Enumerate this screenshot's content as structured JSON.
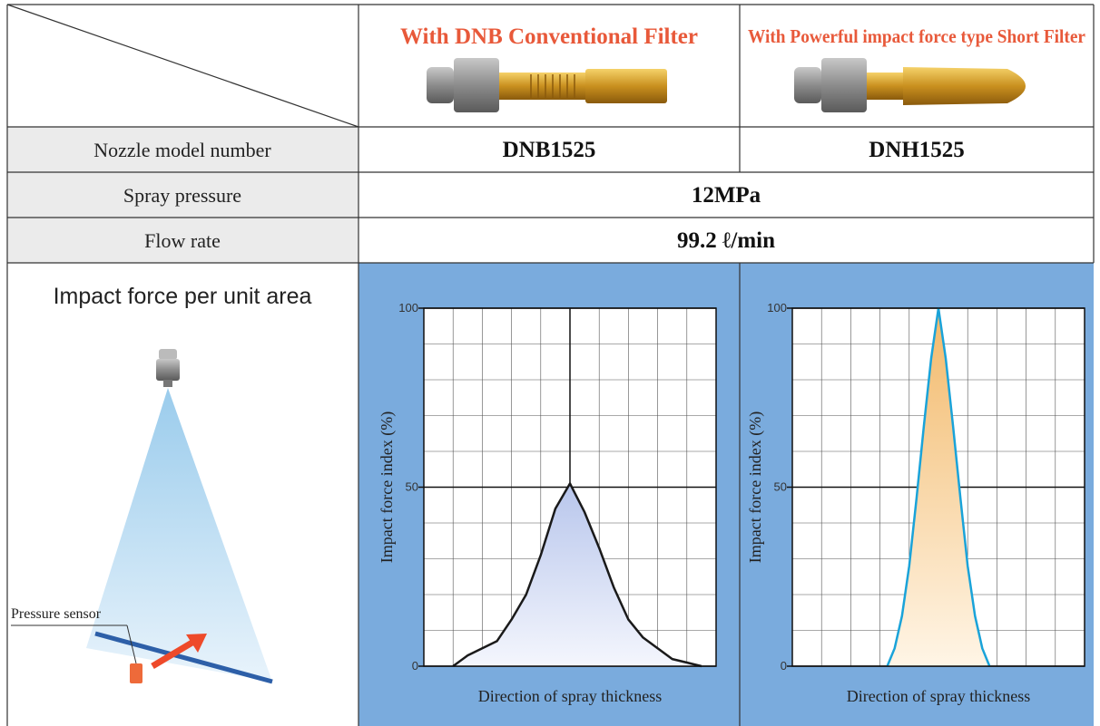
{
  "table": {
    "header": [
      "With DNB Conventional Filter",
      "With Powerful impact force type Short Filter"
    ],
    "rows": [
      [
        "Nozzle model number",
        "DNB1525",
        "DNH1525"
      ],
      [
        "Spray pressure",
        "12MPa"
      ],
      [
        "Flow rate",
        "99.2 ℓ/min"
      ]
    ],
    "impact_label": "Impact force per unit area",
    "sensor_label": "Pressure sensor"
  },
  "chart_data": [
    {
      "type": "line",
      "x_label": "Direction of spray thickness",
      "y_label": "Impact force index (%)",
      "x": [
        -4,
        -3.5,
        -3,
        -2.5,
        -2,
        -1.5,
        -1,
        -0.5,
        0,
        0.5,
        1,
        1.5,
        2,
        2.5,
        3,
        3.5,
        4,
        4.5
      ],
      "values": [
        0,
        3,
        5,
        7,
        13,
        20,
        31,
        44,
        51,
        43,
        33,
        22,
        13,
        8,
        5,
        2,
        1,
        0
      ],
      "color": "#1a1a1a",
      "xlim": [
        -5,
        5
      ],
      "ylim": [
        0,
        100
      ],
      "yticks": [
        0,
        50,
        100
      ],
      "grid": true
    },
    {
      "type": "line",
      "x_label": "Direction of spray thickness",
      "y_label": "Impact force index (%)",
      "x": [
        -1.75,
        -1.5,
        -1.25,
        -1,
        -0.75,
        -0.5,
        -0.25,
        0,
        0.25,
        0.5,
        0.75,
        1,
        1.25,
        1.5,
        1.75
      ],
      "values": [
        0,
        5,
        14,
        28,
        47,
        67,
        86,
        100,
        86,
        67,
        47,
        28,
        14,
        5,
        0
      ],
      "color": "#1aa3d9",
      "xlim": [
        -5,
        5
      ],
      "ylim": [
        0,
        100
      ],
      "yticks": [
        0,
        50,
        100
      ],
      "grid": true
    }
  ]
}
